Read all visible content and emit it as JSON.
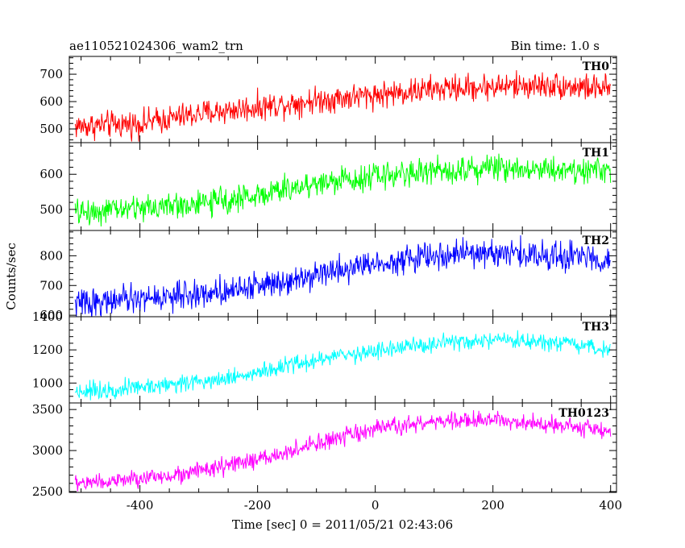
{
  "header": {
    "title": "ae110521024306_wam2_trn",
    "bin_time": "Bin time: 1.0 s"
  },
  "chart_data": {
    "type": "line",
    "title": "ae110521024306_wam2_trn",
    "xlabel": "Time [sec] 0 = 2011/05/21 02:43:06",
    "ylabel": "Counts/sec",
    "xlim": [
      -520,
      410
    ],
    "x_ticks": [
      -400,
      -200,
      0,
      200,
      400
    ],
    "x_start": -510,
    "x_end": 400,
    "x_step": 1,
    "grid": false,
    "panels": [
      {
        "name": "TH0",
        "color": "#ff0000",
        "ylim": [
          450,
          765
        ],
        "y_ticks": [
          500,
          600,
          700
        ],
        "trend": [
          [
            -510,
            510
          ],
          [
            -400,
            520
          ],
          [
            -300,
            555
          ],
          [
            -200,
            580
          ],
          [
            -100,
            605
          ],
          [
            0,
            625
          ],
          [
            100,
            645
          ],
          [
            200,
            655
          ],
          [
            300,
            660
          ],
          [
            400,
            645
          ]
        ],
        "noise": 42
      },
      {
        "name": "TH1",
        "color": "#00ff00",
        "ylim": [
          440,
          690
        ],
        "y_ticks": [
          500,
          600
        ],
        "trend": [
          [
            -510,
            490
          ],
          [
            -400,
            505
          ],
          [
            -300,
            515
          ],
          [
            -200,
            540
          ],
          [
            -100,
            575
          ],
          [
            0,
            595
          ],
          [
            100,
            610
          ],
          [
            200,
            620
          ],
          [
            300,
            615
          ],
          [
            400,
            610
          ]
        ],
        "noise": 32
      },
      {
        "name": "TH2",
        "color": "#0000ff",
        "ylim": [
          595,
          885
        ],
        "y_ticks": [
          600,
          700,
          800
        ],
        "trend": [
          [
            -510,
            640
          ],
          [
            -400,
            655
          ],
          [
            -300,
            670
          ],
          [
            -200,
            700
          ],
          [
            -100,
            740
          ],
          [
            0,
            775
          ],
          [
            100,
            800
          ],
          [
            200,
            810
          ],
          [
            300,
            800
          ],
          [
            400,
            790
          ]
        ],
        "noise": 40
      },
      {
        "name": "TH3",
        "color": "#00ffff",
        "ylim": [
          880,
          1400
        ],
        "y_ticks": [
          1000,
          1200,
          1400
        ],
        "trend": [
          [
            -510,
            950
          ],
          [
            -400,
            975
          ],
          [
            -300,
            1010
          ],
          [
            -200,
            1060
          ],
          [
            -100,
            1140
          ],
          [
            0,
            1195
          ],
          [
            100,
            1235
          ],
          [
            200,
            1255
          ],
          [
            300,
            1240
          ],
          [
            400,
            1200
          ]
        ],
        "noise": 45
      },
      {
        "name": "TH0123",
        "color": "#ff00ff",
        "ylim": [
          2490,
          3580
        ],
        "y_ticks": [
          2500,
          3000,
          3500
        ],
        "trend": [
          [
            -510,
            2600
          ],
          [
            -400,
            2650
          ],
          [
            -300,
            2750
          ],
          [
            -200,
            2880
          ],
          [
            -100,
            3080
          ],
          [
            0,
            3260
          ],
          [
            100,
            3350
          ],
          [
            200,
            3370
          ],
          [
            300,
            3330
          ],
          [
            400,
            3230
          ]
        ],
        "noise": 90
      }
    ]
  }
}
